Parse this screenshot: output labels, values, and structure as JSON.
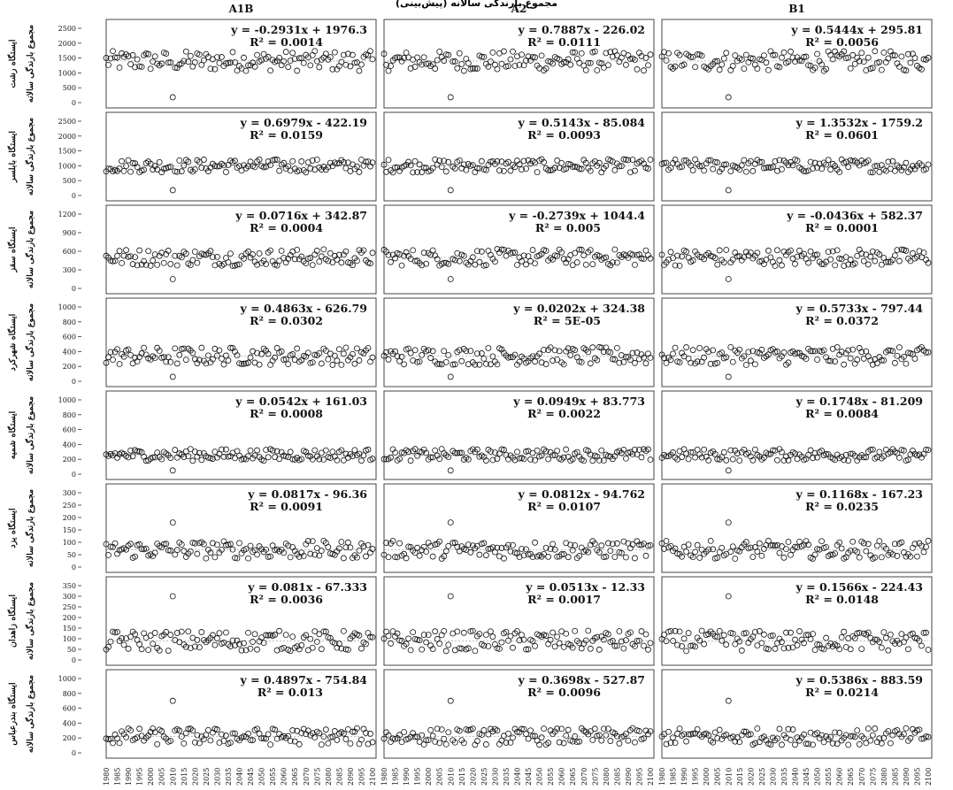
{
  "caption_fragment": "مجموع بارندگی سالانه (پیش‌بینی)",
  "chart_data": {
    "type": "scatter",
    "grid": false,
    "x_range": [
      1980,
      2100
    ],
    "x_ticks": [
      1980,
      1985,
      1990,
      1995,
      2000,
      2005,
      2010,
      2015,
      2020,
      2025,
      2030,
      2035,
      2040,
      2045,
      2050,
      2055,
      2060,
      2065,
      2070,
      2075,
      2080,
      2085,
      2090,
      2095,
      2100
    ],
    "columns": [
      "A1B",
      "A2",
      "B1"
    ],
    "y_axis_label": "مجموع بارندگی سالانه",
    "rows": [
      {
        "station": "ایستگاه رشت",
        "ylim": [
          0,
          2500
        ],
        "yticks": [
          0,
          500,
          1000,
          1500,
          2000,
          2500
        ],
        "mean": 1400,
        "spread": 420,
        "outlier": 180,
        "panels": [
          {
            "equation": "y = -0.2931x + 1976.3",
            "r2": "R² = 0.0014"
          },
          {
            "equation": "y = 0.7887x - 226.02",
            "r2": "R² = 0.0111"
          },
          {
            "equation": "y = 0.5444x + 295.81",
            "r2": "R² = 0.0056"
          }
        ]
      },
      {
        "station": "ایستگاه بابلسر",
        "ylim": [
          0,
          2500
        ],
        "yticks": [
          0,
          500,
          1000,
          1500,
          2000,
          2500
        ],
        "mean": 1000,
        "spread": 280,
        "outlier": 180,
        "panels": [
          {
            "equation": "y = 0.6979x - 422.19",
            "r2": "R² = 0.0159"
          },
          {
            "equation": "y = 0.5143x - 85.084",
            "r2": "R² = 0.0093"
          },
          {
            "equation": "y = 1.3532x - 1759.2",
            "r2": "R² = 0.0601"
          }
        ]
      },
      {
        "station": "ایستگاه سقز",
        "ylim": [
          0,
          1200
        ],
        "yticks": [
          0,
          300,
          600,
          900,
          1200
        ],
        "mean": 500,
        "spread": 170,
        "outlier": 150,
        "panels": [
          {
            "equation": "y = 0.0716x + 342.87",
            "r2": "R² = 0.0004"
          },
          {
            "equation": "y = -0.2739x + 1044.4",
            "r2": "R² = 0.005"
          },
          {
            "equation": "y = -0.0436x + 582.37",
            "r2": "R² = 0.0001"
          }
        ]
      },
      {
        "station": "ایستگاه شهرکرد",
        "ylim": [
          0,
          1000
        ],
        "yticks": [
          0,
          200,
          400,
          600,
          800,
          1000
        ],
        "mean": 340,
        "spread": 150,
        "outlier": 60,
        "panels": [
          {
            "equation": "y = 0.4863x - 626.79",
            "r2": "R² = 0.0302"
          },
          {
            "equation": "y = 0.0202x + 324.38",
            "r2": "R² = 5E-05"
          },
          {
            "equation": "y = 0.5733x - 797.44",
            "r2": "R² = 0.0372"
          }
        ]
      },
      {
        "station": "ایستگاه شمیه",
        "ylim": [
          0,
          1000
        ],
        "yticks": [
          0,
          200,
          400,
          600,
          800,
          1000
        ],
        "mean": 260,
        "spread": 100,
        "outlier": 50,
        "panels": [
          {
            "equation": "y = 0.0542x + 161.03",
            "r2": "R² = 0.0008"
          },
          {
            "equation": "y = 0.0949x + 83.773",
            "r2": "R² = 0.0022"
          },
          {
            "equation": "y = 0.1748x - 81.209",
            "r2": "R² = 0.0084"
          }
        ]
      },
      {
        "station": "ایستگاه یزد",
        "ylim": [
          0,
          300
        ],
        "yticks": [
          0,
          50,
          100,
          150,
          200,
          250,
          300
        ],
        "mean": 70,
        "spread": 45,
        "outlier": 180,
        "panels": [
          {
            "equation": "y = 0.0817x - 96.36",
            "r2": "R² = 0.0091"
          },
          {
            "equation": "y = 0.0812x - 94.762",
            "r2": "R² = 0.0107"
          },
          {
            "equation": "y = 0.1168x - 167.23",
            "r2": "R² = 0.0235"
          }
        ]
      },
      {
        "station": "ایستگاه زاهدان",
        "ylim": [
          0,
          350
        ],
        "yticks": [
          0,
          50,
          100,
          150,
          200,
          250,
          300,
          350
        ],
        "mean": 90,
        "spread": 60,
        "outlier": 300,
        "panels": [
          {
            "equation": "y = 0.081x - 67.333",
            "r2": "R² = 0.0036"
          },
          {
            "equation": "y = 0.0513x - 12.33",
            "r2": "R² = 0.0017"
          },
          {
            "equation": "y = 0.1566x - 224.43",
            "r2": "R² = 0.0148"
          }
        ]
      },
      {
        "station": "ایستگاه بندرعباس",
        "ylim": [
          0,
          1000
        ],
        "yticks": [
          0,
          200,
          400,
          600,
          800,
          1000
        ],
        "mean": 220,
        "spread": 140,
        "outlier": 700,
        "panels": [
          {
            "equation": "y = 0.4897x - 754.84",
            "r2": "R² = 0.013"
          },
          {
            "equation": "y = 0.3698x - 527.87",
            "r2": "R² = 0.0096"
          },
          {
            "equation": "y = 0.5386x - 883.59",
            "r2": "R² = 0.0214"
          }
        ]
      }
    ]
  }
}
